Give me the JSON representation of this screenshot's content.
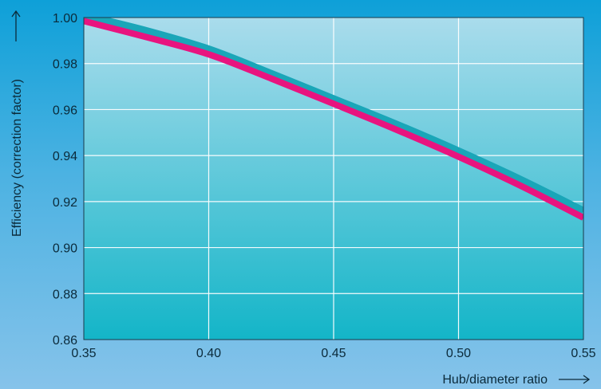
{
  "chart_data": {
    "type": "line",
    "xlabel": "Hub/diameter ratio",
    "ylabel": "Efficiency (correction factor)",
    "xlim": [
      0.35,
      0.55
    ],
    "ylim": [
      0.86,
      1.0
    ],
    "x_ticks": [
      "0.35",
      "0.40",
      "0.45",
      "0.50",
      "0.55"
    ],
    "y_ticks": [
      "0.86",
      "0.88",
      "0.90",
      "0.92",
      "0.94",
      "0.96",
      "0.98",
      "1.00"
    ],
    "grid": true,
    "x_arrow": "→",
    "y_arrow": "→",
    "series": [
      {
        "color": "#1aa6b8",
        "x": [
          0.35,
          0.375,
          0.4,
          0.425,
          0.45,
          0.475,
          0.5,
          0.525,
          0.55
        ],
        "y": [
          1.001,
          0.9943,
          0.9863,
          0.9757,
          0.9647,
          0.9537,
          0.942,
          0.9295,
          0.916
        ]
      },
      {
        "color": "#e8147f",
        "x": [
          0.35,
          0.375,
          0.4,
          0.425,
          0.45,
          0.475,
          0.5,
          0.525,
          0.55
        ],
        "y": [
          0.9985,
          0.9915,
          0.984,
          0.9735,
          0.9625,
          0.9513,
          0.9395,
          0.9268,
          0.913
        ]
      }
    ],
    "plot_background": {
      "top": "#aadcec",
      "bottom": "#13b5c8"
    }
  }
}
